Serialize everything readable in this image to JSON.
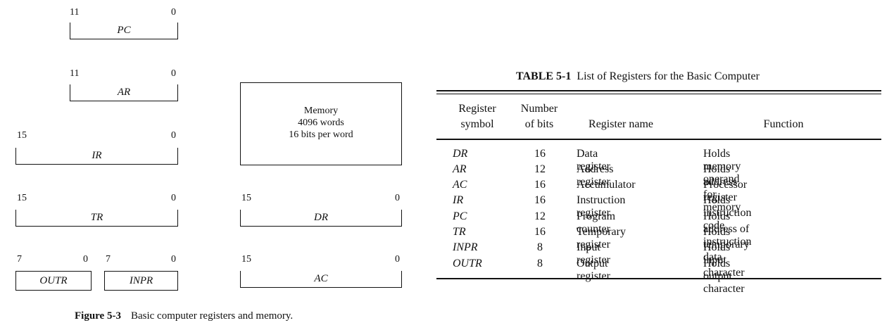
{
  "figure": {
    "registers": [
      {
        "name": "PC",
        "high": "11",
        "low": "0"
      },
      {
        "name": "AR",
        "high": "11",
        "low": "0"
      },
      {
        "name": "IR",
        "high": "15",
        "low": "0"
      },
      {
        "name": "TR",
        "high": "15",
        "low": "0"
      },
      {
        "name": "OUTR",
        "high": "7",
        "low": "0"
      },
      {
        "name": "INPR",
        "high": "7",
        "low": "0"
      },
      {
        "name": "DR",
        "high": "15",
        "low": "0"
      },
      {
        "name": "AC",
        "high": "15",
        "low": "0"
      }
    ],
    "memory": {
      "line1": "Memory",
      "line2": "4096 words",
      "line3": "16 bits per word"
    },
    "caption_label": "Figure 5-3",
    "caption_text": "Basic computer registers and memory."
  },
  "table": {
    "title_label": "TABLE 5-1",
    "title_text": "List of Registers for the Basic Computer",
    "headers": {
      "symbol_1": "Register",
      "symbol_2": "symbol",
      "bits_1": "Number",
      "bits_2": "of bits",
      "name": "Register name",
      "function": "Function"
    },
    "rows": [
      {
        "symbol": "DR",
        "bits": "16",
        "name": "Data register",
        "function": "Holds memory operand"
      },
      {
        "symbol": "AR",
        "bits": "12",
        "name": "Address register",
        "function": "Holds address for memory"
      },
      {
        "symbol": "AC",
        "bits": "16",
        "name": "Accumulator",
        "function": "Processor register"
      },
      {
        "symbol": "IR",
        "bits": "16",
        "name": "Instruction register",
        "function": "Holds instruction code"
      },
      {
        "symbol": "PC",
        "bits": "12",
        "name": "Program counter",
        "function": "Holds address of instruction"
      },
      {
        "symbol": "TR",
        "bits": "16",
        "name": "Temporary register",
        "function": "Holds temporary data"
      },
      {
        "symbol": "INPR",
        "bits": "8",
        "name": "Input register",
        "function": "Holds input character"
      },
      {
        "symbol": "OUTR",
        "bits": "8",
        "name": "Output register",
        "function": "Holds output character"
      }
    ]
  }
}
